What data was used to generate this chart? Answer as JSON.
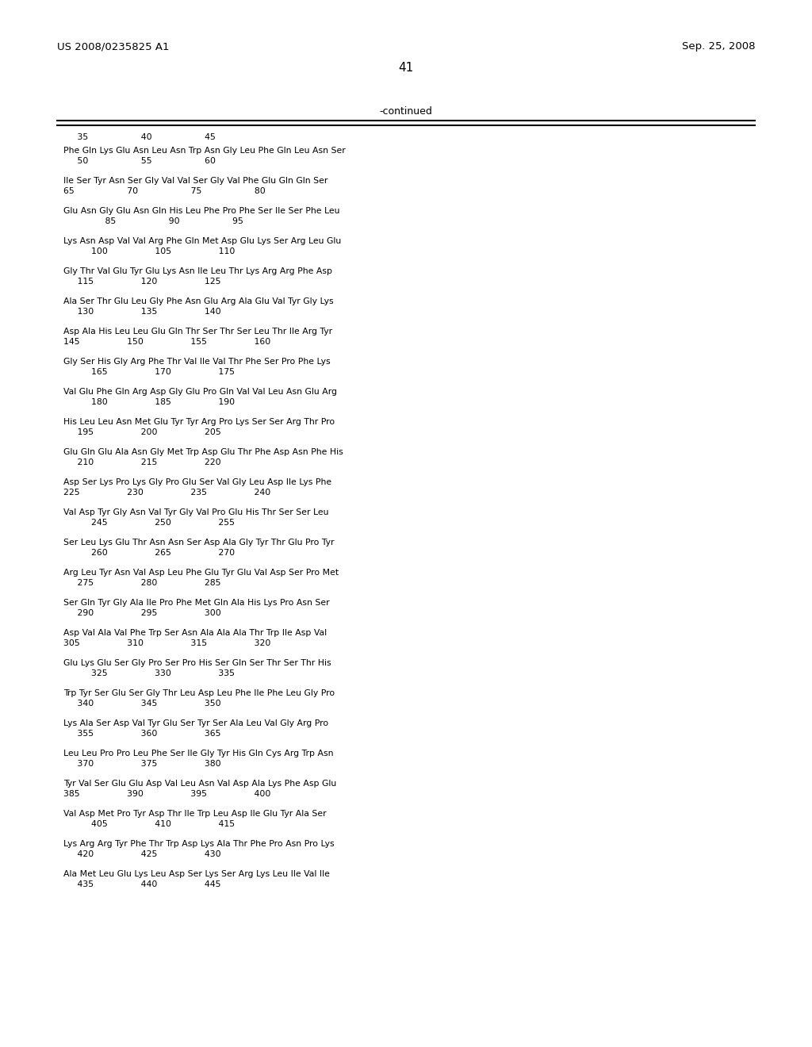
{
  "header_left": "US 2008/0235825 A1",
  "header_right": "Sep. 25, 2008",
  "page_number": "41",
  "continued_label": "-continued",
  "background_color": "#ffffff",
  "text_color": "#000000",
  "header_fontsize": 9.5,
  "page_num_fontsize": 11,
  "seq_fontsize": 7.8,
  "top_numbers": "     35                   40                   45",
  "blocks": [
    [
      "Phe Gln Lys Glu Asn Leu Asn Trp Asn Gly Leu Phe Gln Leu Asn Ser",
      "     50                   55                   60"
    ],
    [
      "Ile Ser Tyr Asn Ser Gly Val Val Ser Gly Val Phe Glu Gln Gln Ser",
      "65                   70                   75                   80"
    ],
    [
      "Glu Asn Gly Glu Asn Gln His Leu Phe Pro Phe Ser Ile Ser Phe Leu",
      "               85                   90                   95"
    ],
    [
      "Lys Asn Asp Val Val Arg Phe Gln Met Asp Glu Lys Ser Arg Leu Glu",
      "          100                 105                 110"
    ],
    [
      "Gly Thr Val Glu Tyr Glu Lys Asn Ile Leu Thr Lys Arg Arg Phe Asp",
      "     115                 120                 125"
    ],
    [
      "Ala Ser Thr Glu Leu Gly Phe Asn Glu Arg Ala Glu Val Tyr Gly Lys",
      "     130                 135                 140"
    ],
    [
      "Asp Ala His Leu Leu Glu Gln Thr Ser Thr Ser Leu Thr Ile Arg Tyr",
      "145                 150                 155                 160"
    ],
    [
      "Gly Ser His Gly Arg Phe Thr Val Ile Val Thr Phe Ser Pro Phe Lys",
      "          165                 170                 175"
    ],
    [
      "Val Glu Phe Gln Arg Asp Gly Glu Pro Gln Val Val Leu Asn Glu Arg",
      "          180                 185                 190"
    ],
    [
      "His Leu Leu Asn Met Glu Tyr Tyr Arg Pro Lys Ser Ser Arg Thr Pro",
      "     195                 200                 205"
    ],
    [
      "Glu Gln Glu Ala Asn Gly Met Trp Asp Glu Thr Phe Asp Asn Phe His",
      "     210                 215                 220"
    ],
    [
      "Asp Ser Lys Pro Lys Gly Pro Glu Ser Val Gly Leu Asp Ile Lys Phe",
      "225                 230                 235                 240"
    ],
    [
      "Val Asp Tyr Gly Asn Val Tyr Gly Val Pro Glu His Thr Ser Ser Leu",
      "          245                 250                 255"
    ],
    [
      "Ser Leu Lys Glu Thr Asn Asn Ser Asp Ala Gly Tyr Thr Glu Pro Tyr",
      "          260                 265                 270"
    ],
    [
      "Arg Leu Tyr Asn Val Asp Leu Phe Glu Tyr Glu Val Asp Ser Pro Met",
      "     275                 280                 285"
    ],
    [
      "Ser Gln Tyr Gly Ala Ile Pro Phe Met Gln Ala His Lys Pro Asn Ser",
      "     290                 295                 300"
    ],
    [
      "Asp Val Ala Val Phe Trp Ser Asn Ala Ala Ala Thr Trp Ile Asp Val",
      "305                 310                 315                 320"
    ],
    [
      "Glu Lys Glu Ser Gly Pro Ser Pro His Ser Gln Ser Thr Ser Thr His",
      "          325                 330                 335"
    ],
    [
      "Trp Tyr Ser Glu Ser Gly Thr Leu Asp Leu Phe Ile Phe Leu Gly Pro",
      "     340                 345                 350"
    ],
    [
      "Lys Ala Ser Asp Val Tyr Glu Ser Tyr Ser Ala Leu Val Gly Arg Pro",
      "     355                 360                 365"
    ],
    [
      "Leu Leu Pro Pro Leu Phe Ser Ile Gly Tyr His Gln Cys Arg Trp Asn",
      "     370                 375                 380"
    ],
    [
      "Tyr Val Ser Glu Glu Asp Val Leu Asn Val Asp Ala Lys Phe Asp Glu",
      "385                 390                 395                 400"
    ],
    [
      "Val Asp Met Pro Tyr Asp Thr Ile Trp Leu Asp Ile Glu Tyr Ala Ser",
      "          405                 410                 415"
    ],
    [
      "Lys Arg Arg Tyr Phe Thr Trp Asp Lys Ala Thr Phe Pro Asn Pro Lys",
      "     420                 425                 430"
    ],
    [
      "Ala Met Leu Glu Lys Leu Asp Ser Lys Ser Arg Lys Leu Ile Val Ile",
      "     435                 440                 445"
    ]
  ]
}
